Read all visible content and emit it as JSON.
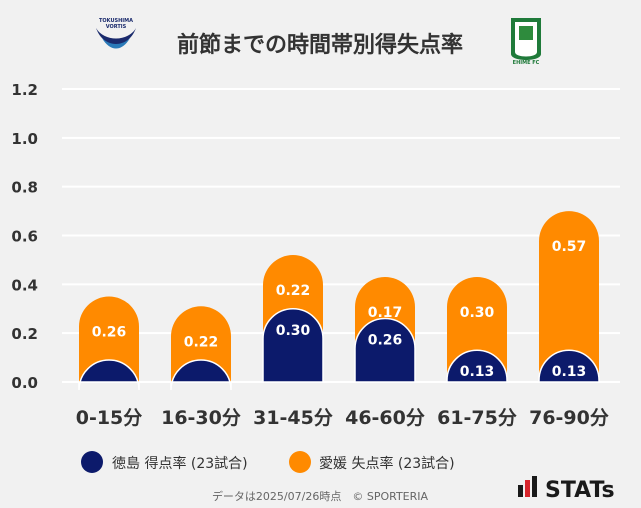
{
  "header": {
    "title": "前節までの時間帯別得失点率",
    "left_logo_text_top": "TOKUSHIMA",
    "left_logo_text_bottom": "VORTIS",
    "right_logo_text": "EHIME FC"
  },
  "chart_data": {
    "type": "bar",
    "categories": [
      "0-15分",
      "16-30分",
      "31-45分",
      "46-60分",
      "61-75分",
      "76-90分"
    ],
    "series": [
      {
        "name": "徳島 得点率 (23試合)",
        "values": [
          0.09,
          0.09,
          0.3,
          0.26,
          0.13,
          0.13
        ],
        "labels": [
          "",
          "",
          "0.30",
          "0.26",
          "0.13",
          "0.13"
        ],
        "color": "#0c1a6b"
      },
      {
        "name": "愛媛 失点率 (23試合)",
        "values": [
          0.26,
          0.22,
          0.22,
          0.17,
          0.3,
          0.57
        ],
        "labels": [
          "0.26",
          "0.22",
          "0.22",
          "0.17",
          "0.30",
          "0.57"
        ],
        "color": "#ff8a00"
      }
    ],
    "stacked": true,
    "yticks": [
      "0.0",
      "0.2",
      "0.4",
      "0.6",
      "0.8",
      "1.0",
      "1.2"
    ],
    "ylim": [
      0,
      1.2
    ],
    "grid": true,
    "legend_position": "bottom-left"
  },
  "footer": {
    "source": "データは2025/07/26時点　© SPORTERIA",
    "brand": "STATs"
  }
}
